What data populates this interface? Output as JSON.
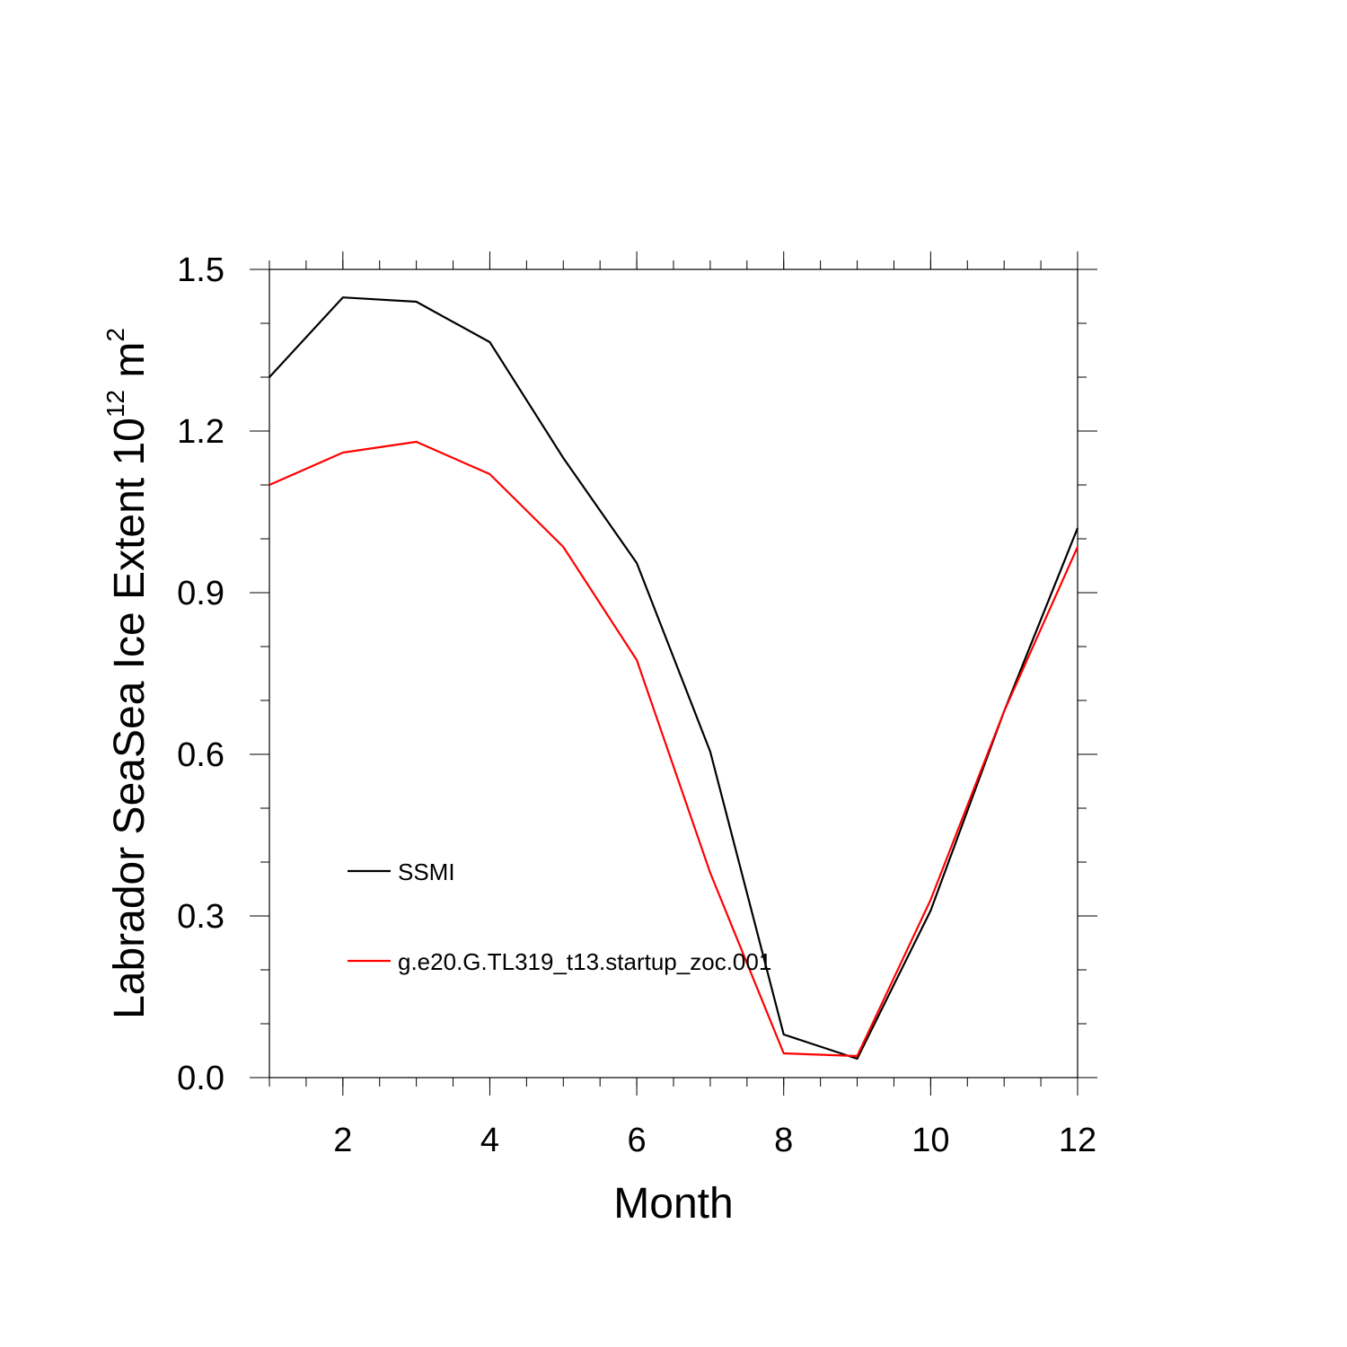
{
  "chart_data": {
    "type": "line",
    "title": "",
    "xlabel": "Month",
    "ylabel_main": "Labrador SeaSea Ice Extent 10",
    "ylabel_sup": "12",
    "ylabel_unit": " m",
    "ylabel_sup2": "2",
    "xlim": [
      1,
      12
    ],
    "ylim": [
      0.0,
      1.5
    ],
    "x_ticks": [
      2,
      4,
      6,
      8,
      10,
      12
    ],
    "x_tick_labels": [
      "2",
      "4",
      "6",
      "8",
      "10",
      "12"
    ],
    "y_ticks": [
      0.0,
      0.3,
      0.6,
      0.9,
      1.2,
      1.5
    ],
    "y_tick_labels": [
      "0.0",
      "0.3",
      "0.6",
      "0.9",
      "1.2",
      "1.5"
    ],
    "x": [
      1,
      2,
      3,
      4,
      5,
      6,
      7,
      8,
      9,
      10,
      11,
      12
    ],
    "series": [
      {
        "name": "SSMI",
        "color": "#000000",
        "values": [
          1.3,
          1.448,
          1.44,
          1.365,
          1.15,
          0.955,
          0.605,
          0.08,
          0.035,
          0.31,
          0.68,
          1.02
        ]
      },
      {
        "name": "g.e20.G.TL319_t13.startup_zoc.001",
        "color": "#ff0000",
        "values": [
          1.1,
          1.16,
          1.18,
          1.12,
          0.985,
          0.775,
          0.38,
          0.045,
          0.04,
          0.33,
          0.68,
          0.985
        ]
      }
    ],
    "legend_position": "lower-left"
  }
}
